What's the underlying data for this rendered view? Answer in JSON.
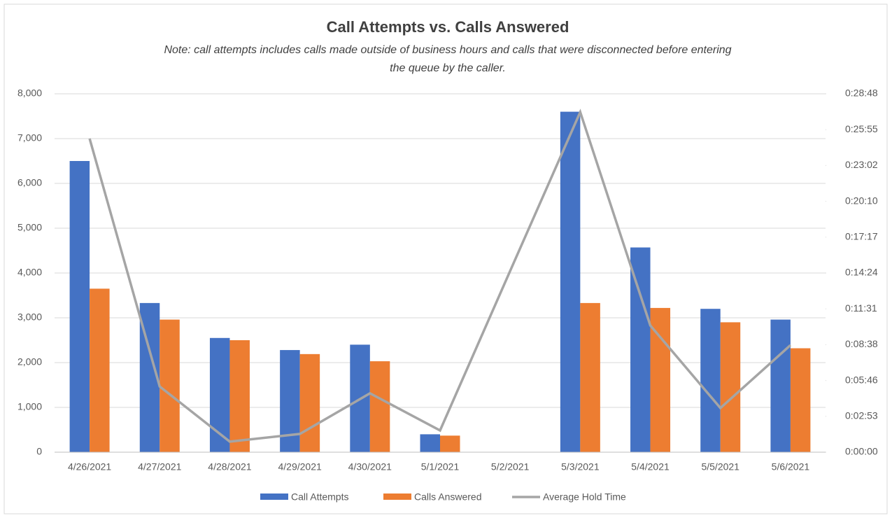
{
  "chart_data": {
    "type": "bar-line",
    "title": "Call Attempts vs. Calls Answered",
    "subtitle": [
      "Note: call attempts includes calls made outside of business hours and calls that were disconnected before entering",
      "the queue by the caller."
    ],
    "categories": [
      "4/26/2021",
      "4/27/2021",
      "4/28/2021",
      "4/29/2021",
      "4/30/2021",
      "5/1/2021",
      "5/2/2021",
      "5/3/2021",
      "5/4/2021",
      "5/5/2021",
      "5/6/2021"
    ],
    "series": [
      {
        "name": "Call Attempts",
        "type": "bar",
        "color": "#4472c4",
        "values": [
          6500,
          3330,
          2550,
          2280,
          2400,
          400,
          null,
          7600,
          4570,
          3200,
          2960
        ]
      },
      {
        "name": "Calls Answered",
        "type": "bar",
        "color": "#ed7d31",
        "values": [
          3650,
          2960,
          2500,
          2190,
          2030,
          370,
          null,
          3330,
          3220,
          2900,
          2320
        ]
      },
      {
        "name": "Average Hold Time",
        "type": "line",
        "axis": "y2",
        "color": "#a5a5a5",
        "values": [
          1512,
          317,
          51,
          88,
          284,
          105,
          874,
          1640,
          611,
          213,
          516
        ]
      }
    ],
    "ylim": [
      0,
      8000
    ],
    "yticks": [
      0,
      {
        "value": 1000,
        "label": "1,000"
      },
      {
        "value": 2000,
        "label": "2,000"
      },
      {
        "value": 3000,
        "label": "3,000"
      },
      {
        "value": 4000,
        "label": "4,000"
      },
      {
        "value": 5000,
        "label": "5,000"
      },
      {
        "value": 6000,
        "label": "6,000"
      },
      {
        "value": 7000,
        "label": "7,000"
      },
      {
        "value": 8000,
        "label": "8,000"
      }
    ],
    "y2lim": [
      0,
      1728
    ],
    "y2ticks": [
      {
        "value": 0,
        "label": "0:00:00"
      },
      {
        "value": 172.8,
        "label": "0:02:53"
      },
      {
        "value": 345.6,
        "label": "0:05:46"
      },
      {
        "value": 518.4,
        "label": "0:08:38"
      },
      {
        "value": 691.2,
        "label": "0:11:31"
      },
      {
        "value": 864,
        "label": "0:14:24"
      },
      {
        "value": 1036.8,
        "label": "0:17:17"
      },
      {
        "value": 1209.6,
        "label": "0:20:10"
      },
      {
        "value": 1382.4,
        "label": "0:23:02"
      },
      {
        "value": 1555.2,
        "label": "0:25:55"
      },
      {
        "value": 1728,
        "label": "0:28:48"
      }
    ],
    "grid": true,
    "legend": "bottom"
  }
}
